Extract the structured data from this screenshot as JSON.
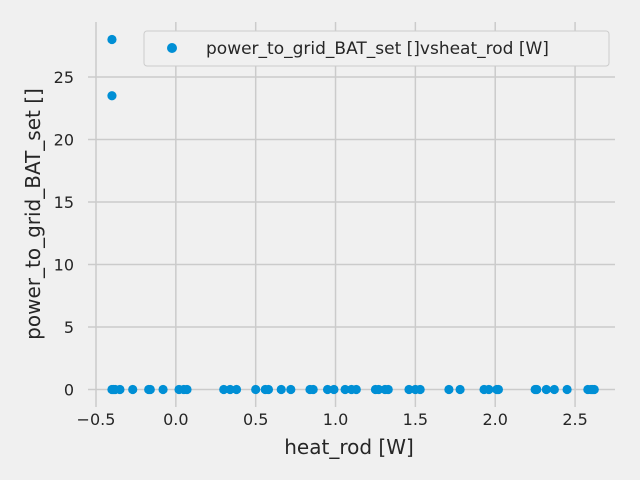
{
  "chart_data": {
    "type": "scatter",
    "title": "",
    "xlabel": "heat_rod [W]",
    "ylabel": "power_to_grid_BAT_set []",
    "xlim": [
      -0.55,
      2.75
    ],
    "ylim": [
      -1.4,
      29.4
    ],
    "xticks": [
      -0.5,
      0.0,
      0.5,
      1.0,
      1.5,
      2.0,
      2.5
    ],
    "xtick_labels": [
      "−0.5",
      "0.0",
      "0.5",
      "1.0",
      "1.5",
      "2.0",
      "2.5"
    ],
    "yticks": [
      0,
      5,
      10,
      15,
      20,
      25
    ],
    "ytick_labels": [
      "0",
      "5",
      "10",
      "15",
      "20",
      "25"
    ],
    "grid": true,
    "legend_position": "top-right",
    "series": [
      {
        "name": "power_to_grid_BAT_set []vsheat_rod [W]",
        "color": "#008fd5",
        "x": [
          -0.4,
          -0.4,
          -0.4,
          -0.39,
          -0.38,
          -0.35,
          -0.27,
          -0.17,
          -0.16,
          -0.08,
          0.02,
          0.05,
          0.07,
          0.3,
          0.34,
          0.38,
          0.5,
          0.56,
          0.58,
          0.66,
          0.72,
          0.84,
          0.86,
          0.95,
          0.99,
          1.06,
          1.1,
          1.13,
          1.25,
          1.27,
          1.31,
          1.33,
          1.46,
          1.5,
          1.53,
          1.71,
          1.78,
          1.93,
          1.96,
          2.01,
          2.02,
          2.25,
          2.26,
          2.32,
          2.37,
          2.45,
          2.58,
          2.6,
          2.61,
          2.62
        ],
        "y": [
          28.0,
          23.5,
          0,
          0,
          0,
          0,
          0,
          0,
          0,
          0,
          0,
          0,
          0,
          0,
          0,
          0,
          0,
          0,
          0,
          0,
          0,
          0,
          0,
          0,
          0,
          0,
          0,
          0,
          0,
          0,
          0,
          0,
          0,
          0,
          0,
          0,
          0,
          0,
          0,
          0,
          0,
          0,
          0,
          0,
          0,
          0,
          0,
          0,
          0,
          0
        ]
      }
    ]
  }
}
